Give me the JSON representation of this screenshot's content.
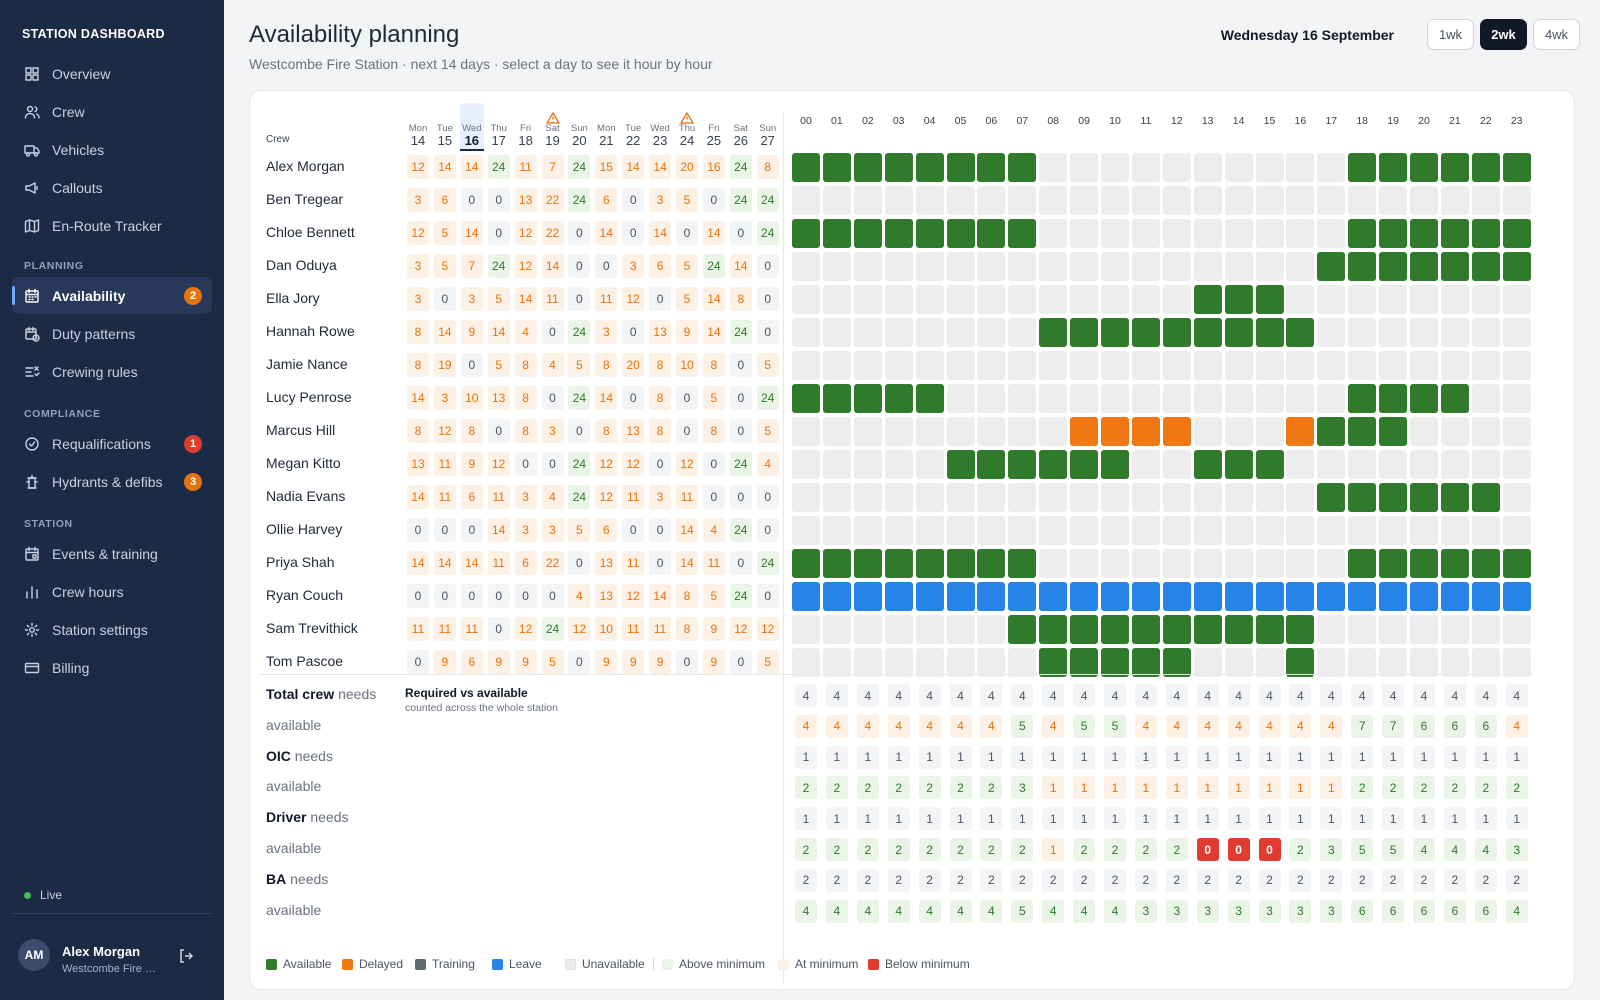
{
  "sidebar": {
    "brand": "STATION DASHBOARD",
    "top_items": [
      {
        "label": "Overview",
        "icon": "grid-icon"
      },
      {
        "label": "Crew",
        "icon": "users-icon"
      },
      {
        "label": "Vehicles",
        "icon": "truck-icon"
      },
      {
        "label": "Callouts",
        "icon": "megaphone-icon"
      },
      {
        "label": "En-Route Tracker",
        "icon": "map-icon"
      }
    ],
    "sections": [
      {
        "title": "PLANNING",
        "items": [
          {
            "label": "Availability",
            "icon": "calendar-icon",
            "badge": "2",
            "badge_color": "#e8730c",
            "active": true
          },
          {
            "label": "Duty patterns",
            "icon": "calendar-clock-icon"
          },
          {
            "label": "Crewing rules",
            "icon": "rules-icon"
          }
        ]
      },
      {
        "title": "COMPLIANCE",
        "items": [
          {
            "label": "Requalifications",
            "icon": "badge-check-icon",
            "badge": "1",
            "badge_color": "#e03b2f"
          },
          {
            "label": "Hydrants & defibs",
            "icon": "hydrant-icon",
            "badge": "3",
            "badge_color": "#e8730c"
          }
        ]
      },
      {
        "title": "STATION",
        "items": [
          {
            "label": "Events & training",
            "icon": "calendar-event-icon"
          },
          {
            "label": "Crew hours",
            "icon": "bar-chart-icon"
          },
          {
            "label": "Station settings",
            "icon": "gear-icon"
          },
          {
            "label": "Billing",
            "icon": "credit-card-icon"
          }
        ]
      }
    ],
    "status": "Live",
    "user": {
      "initials": "AM",
      "name": "Alex Morgan",
      "station": "Westcombe Fire Station"
    }
  },
  "header": {
    "title": "Availability planning",
    "subtitle": "Westcombe Fire Station · next 14 days · select a day to see it hour by hour",
    "date": "Wednesday 16 September",
    "ranges": [
      "1wk",
      "2wk",
      "4wk"
    ],
    "selected_range": "2wk"
  },
  "grid": {
    "crew_header": "Crew",
    "days": [
      {
        "dow": "Mon",
        "day": "14"
      },
      {
        "dow": "Tue",
        "day": "15"
      },
      {
        "dow": "Wed",
        "day": "16",
        "today": true
      },
      {
        "dow": "Thu",
        "day": "17"
      },
      {
        "dow": "Fri",
        "day": "18"
      },
      {
        "dow": "Sat",
        "day": "19",
        "warning": true
      },
      {
        "dow": "Sun",
        "day": "20"
      },
      {
        "dow": "Mon",
        "day": "21"
      },
      {
        "dow": "Tue",
        "day": "22"
      },
      {
        "dow": "Wed",
        "day": "23"
      },
      {
        "dow": "Thu",
        "day": "24",
        "warning": true
      },
      {
        "dow": "Fri",
        "day": "25"
      },
      {
        "dow": "Sat",
        "day": "26"
      },
      {
        "dow": "Sun",
        "day": "27"
      }
    ],
    "hours": [
      "00",
      "01",
      "02",
      "03",
      "04",
      "05",
      "06",
      "07",
      "08",
      "09",
      "10",
      "11",
      "12",
      "13",
      "14",
      "15",
      "16",
      "17",
      "18",
      "19",
      "20",
      "21",
      "22",
      "23"
    ],
    "crew": [
      {
        "name": "Alex Morgan",
        "counts": [
          12,
          14,
          14,
          24,
          11,
          7,
          24,
          15,
          14,
          14,
          20,
          16,
          24,
          8
        ],
        "hours": "AAAAAAAAUUUUUUUUUUAAAAAA"
      },
      {
        "name": "Ben Tregear",
        "counts": [
          3,
          6,
          0,
          0,
          13,
          22,
          24,
          6,
          0,
          3,
          5,
          0,
          24,
          24
        ],
        "hours": "UUUUUUUUUUUUUUUUUUUUUUUU"
      },
      {
        "name": "Chloe Bennett",
        "counts": [
          12,
          5,
          14,
          0,
          12,
          22,
          0,
          14,
          0,
          14,
          0,
          14,
          0,
          24
        ],
        "hours": "AAAAAAAAUUUUUUUUUUAAAAAA"
      },
      {
        "name": "Dan Oduya",
        "counts": [
          3,
          5,
          7,
          24,
          12,
          14,
          0,
          0,
          3,
          6,
          5,
          24,
          14,
          0
        ],
        "hours": "UUUUUUUUUUUUUUUUUAAAAAAA"
      },
      {
        "name": "Ella Jory",
        "counts": [
          3,
          0,
          3,
          5,
          14,
          11,
          0,
          11,
          12,
          0,
          5,
          14,
          8,
          0
        ],
        "hours": "UUUUUUUUUUUUUAAAUUUUUUUU"
      },
      {
        "name": "Hannah Rowe",
        "counts": [
          8,
          14,
          9,
          14,
          4,
          0,
          24,
          3,
          0,
          13,
          9,
          14,
          24,
          0
        ],
        "hours": "UUUUUUUUAAAAAAAAAUUUUUUU"
      },
      {
        "name": "Jamie Nance",
        "counts": [
          8,
          19,
          0,
          5,
          8,
          4,
          5,
          8,
          20,
          8,
          10,
          8,
          0,
          5
        ],
        "hours": "UUUUUUUUUUUUUUUUUUUUUUUU"
      },
      {
        "name": "Lucy Penrose",
        "counts": [
          14,
          3,
          10,
          13,
          8,
          0,
          24,
          14,
          0,
          8,
          0,
          5,
          0,
          24
        ],
        "hours": "AAAAAUUUUUUUUUUUUUAAAAUU"
      },
      {
        "name": "Marcus Hill",
        "counts": [
          8,
          12,
          8,
          0,
          8,
          3,
          0,
          8,
          13,
          8,
          0,
          8,
          0,
          5
        ],
        "hours": "UUUUUUUUUDDDDUUUDAAAUUUU"
      },
      {
        "name": "Megan Kitto",
        "counts": [
          13,
          11,
          9,
          12,
          0,
          0,
          24,
          12,
          12,
          0,
          12,
          0,
          24,
          4
        ],
        "hours": "UUUUUAAAAAAUUAAAUUUUUUUU"
      },
      {
        "name": "Nadia Evans",
        "counts": [
          14,
          11,
          6,
          11,
          3,
          4,
          24,
          12,
          11,
          3,
          11,
          0,
          0,
          0
        ],
        "hours": "UUUUUUUUUUUUUUUUUAAAAAAU"
      },
      {
        "name": "Ollie Harvey",
        "counts": [
          0,
          0,
          0,
          14,
          3,
          3,
          5,
          6,
          0,
          0,
          14,
          4,
          24,
          0
        ],
        "hours": "UUUUUUUUUUUUUUUUUUUUUUUU"
      },
      {
        "name": "Priya Shah",
        "counts": [
          14,
          14,
          14,
          11,
          6,
          22,
          0,
          13,
          11,
          0,
          14,
          11,
          0,
          24
        ],
        "hours": "AAAAAAAAUUUUUUUUUUAAAAAA"
      },
      {
        "name": "Ryan Couch",
        "counts": [
          0,
          0,
          0,
          0,
          0,
          0,
          4,
          13,
          12,
          14,
          8,
          5,
          24,
          0
        ],
        "hours": "LLLLLLLLLLLLLLLLLLLLLLLL"
      },
      {
        "name": "Sam Trevithick",
        "counts": [
          11,
          11,
          11,
          0,
          12,
          24,
          12,
          10,
          11,
          11,
          8,
          9,
          12,
          12
        ],
        "hours": "UUUUUUUAAAAAAAAAAUUUUUUU"
      },
      {
        "name": "Tom Pascoe",
        "counts": [
          0,
          9,
          6,
          9,
          9,
          5,
          0,
          9,
          9,
          9,
          0,
          9,
          0,
          5
        ],
        "hours": "UUUUUUUUAAAAAUUUAUUUUUUU"
      }
    ]
  },
  "summary": {
    "title": "Required vs available",
    "subtitle": "counted across the whole station",
    "rows": [
      {
        "label_bold": "Total crew",
        "label_rest": " needs",
        "kind": "needs",
        "values": [
          4,
          4,
          4,
          4,
          4,
          4,
          4,
          4,
          4,
          4,
          4,
          4,
          4,
          4,
          4,
          4,
          4,
          4,
          4,
          4,
          4,
          4,
          4,
          4
        ]
      },
      {
        "label_bold": "",
        "label_rest": "available",
        "kind": "available",
        "need": 4,
        "values": [
          4,
          4,
          4,
          4,
          4,
          4,
          4,
          5,
          4,
          5,
          5,
          4,
          4,
          4,
          4,
          4,
          4,
          4,
          7,
          7,
          6,
          6,
          6,
          4
        ]
      },
      {
        "label_bold": "OIC",
        "label_rest": " needs",
        "kind": "needs",
        "values": [
          1,
          1,
          1,
          1,
          1,
          1,
          1,
          1,
          1,
          1,
          1,
          1,
          1,
          1,
          1,
          1,
          1,
          1,
          1,
          1,
          1,
          1,
          1,
          1
        ]
      },
      {
        "label_bold": "",
        "label_rest": "available",
        "kind": "available",
        "need": 1,
        "values": [
          2,
          2,
          2,
          2,
          2,
          2,
          2,
          3,
          1,
          1,
          1,
          1,
          1,
          1,
          1,
          1,
          1,
          1,
          2,
          2,
          2,
          2,
          2,
          2
        ]
      },
      {
        "label_bold": "Driver",
        "label_rest": " needs",
        "kind": "needs",
        "values": [
          1,
          1,
          1,
          1,
          1,
          1,
          1,
          1,
          1,
          1,
          1,
          1,
          1,
          1,
          1,
          1,
          1,
          1,
          1,
          1,
          1,
          1,
          1,
          1
        ]
      },
      {
        "label_bold": "",
        "label_rest": "available",
        "kind": "available",
        "need": 1,
        "values": [
          2,
          2,
          2,
          2,
          2,
          2,
          2,
          2,
          1,
          2,
          2,
          2,
          2,
          0,
          0,
          0,
          2,
          3,
          5,
          5,
          4,
          4,
          4,
          3
        ]
      },
      {
        "label_bold": "BA",
        "label_rest": " needs",
        "kind": "needs",
        "values": [
          2,
          2,
          2,
          2,
          2,
          2,
          2,
          2,
          2,
          2,
          2,
          2,
          2,
          2,
          2,
          2,
          2,
          2,
          2,
          2,
          2,
          2,
          2,
          2
        ]
      },
      {
        "label_bold": "",
        "label_rest": "available",
        "kind": "available",
        "need": 2,
        "values": [
          4,
          4,
          4,
          4,
          4,
          4,
          4,
          5,
          4,
          4,
          4,
          3,
          3,
          3,
          3,
          3,
          3,
          3,
          6,
          6,
          6,
          6,
          6,
          4
        ]
      }
    ]
  },
  "legend": [
    {
      "label": "Available",
      "color": "#2f7a2b"
    },
    {
      "label": "Delayed",
      "color": "#f07814"
    },
    {
      "label": "Training",
      "color": "#5d6b73"
    },
    {
      "label": "Leave",
      "color": "#2684e8"
    },
    {
      "label": "Unavailable",
      "color": "#ededed"
    },
    {
      "label": "Above minimum",
      "color": "#eaf5e7"
    },
    {
      "label": "At minimum",
      "color": "#fdf0e4"
    },
    {
      "label": "Below minimum",
      "color": "#e03b2f"
    }
  ],
  "colors": {
    "sidebar_bg": "#1b2a45",
    "available": "#2f7a2b",
    "delayed": "#f07814",
    "leave": "#2684e8",
    "below_minimum": "#e03b2f"
  }
}
